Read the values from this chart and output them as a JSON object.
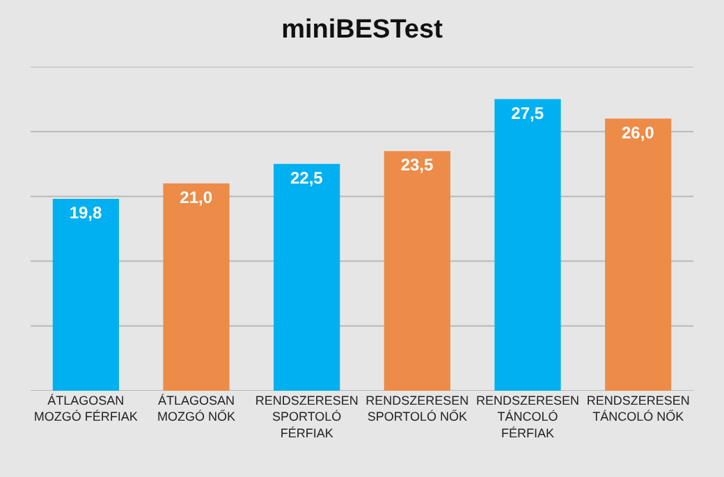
{
  "chart_data": {
    "type": "bar",
    "title": "miniBESTest",
    "categories": [
      "ÁTLAGOSAN\nMOZGÓ FÉRFIAK",
      "ÁTLAGOSAN\nMOZGÓ NŐK",
      "RENDSZERESEN\nSPORTOLÓ\nFÉRFIAK",
      "RENDSZERESEN\nSPORTOLÓ NŐK",
      "RENDSZERESEN\nTÁNCOLÓ\nFÉRFIAK",
      "RENDSZERESEN\nTÁNCOLÓ NŐK"
    ],
    "values": [
      19.8,
      21.0,
      22.5,
      23.5,
      27.5,
      26.0
    ],
    "value_labels": [
      "19,8",
      "21,0",
      "22,5",
      "23,5",
      "27,5",
      "26,0"
    ],
    "colors": [
      "#00b0f0",
      "#ed8b48",
      "#00b0f0",
      "#ed8b48",
      "#00b0f0",
      "#ed8b48"
    ],
    "ylim": [
      5,
      30
    ],
    "yticks": [
      {
        "value": 5,
        "label": null
      },
      {
        "value": 10,
        "label": null
      },
      {
        "value": 15,
        "label": null
      },
      {
        "value": 20,
        "label": null
      },
      {
        "value": 25,
        "label": null
      },
      {
        "value": 30,
        "label": null
      }
    ],
    "grid": "y",
    "tick_labels": "x",
    "legend": false
  }
}
